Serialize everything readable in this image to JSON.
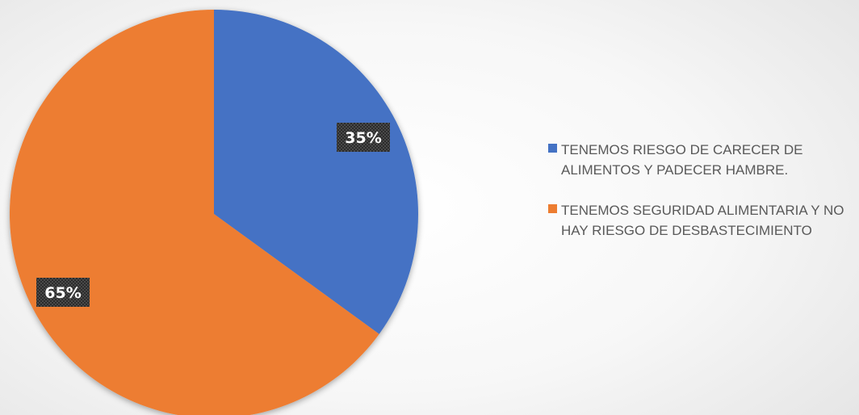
{
  "chart_data": {
    "type": "pie",
    "slices": [
      {
        "label": "TENEMOS RIESGO DE CARECER DE ALIMENTOS Y PADECER HAMBRE.",
        "value": 35,
        "display": "35%",
        "color": "#4472c4"
      },
      {
        "label": "TENEMOS SEGURIDAD ALIMENTARIA Y NO HAY RIESGO DE DESBASTECIMIENTO",
        "value": 65,
        "display": "65%",
        "color": "#ed7d31"
      }
    ],
    "legend_position": "right"
  }
}
